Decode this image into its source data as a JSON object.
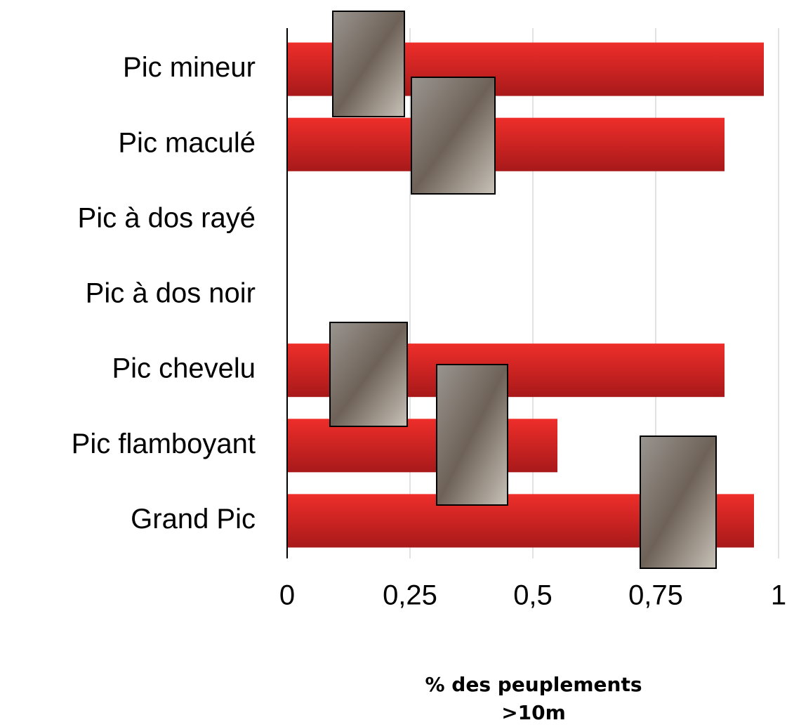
{
  "chart_data": {
    "type": "barh",
    "categories": [
      "Pic mineur",
      "Pic maculé",
      "Pic à dos rayé",
      "Pic à dos noir",
      "Pic chevelu",
      "Pic flamboyant",
      "Grand Pic"
    ],
    "values": [
      0.97,
      0.89,
      0,
      0,
      0.89,
      0.55,
      0.95
    ],
    "color": "#d92323",
    "xlim": [
      0,
      1
    ],
    "xticks": [
      0,
      {
        "value": 0.25,
        "label": "0,25"
      },
      {
        "value": 0.5,
        "label": "0,5"
      },
      {
        "value": 0.75,
        "label": "0,75"
      },
      1
    ],
    "x_label": "% des peuplements >10m",
    "grid": true
  }
}
